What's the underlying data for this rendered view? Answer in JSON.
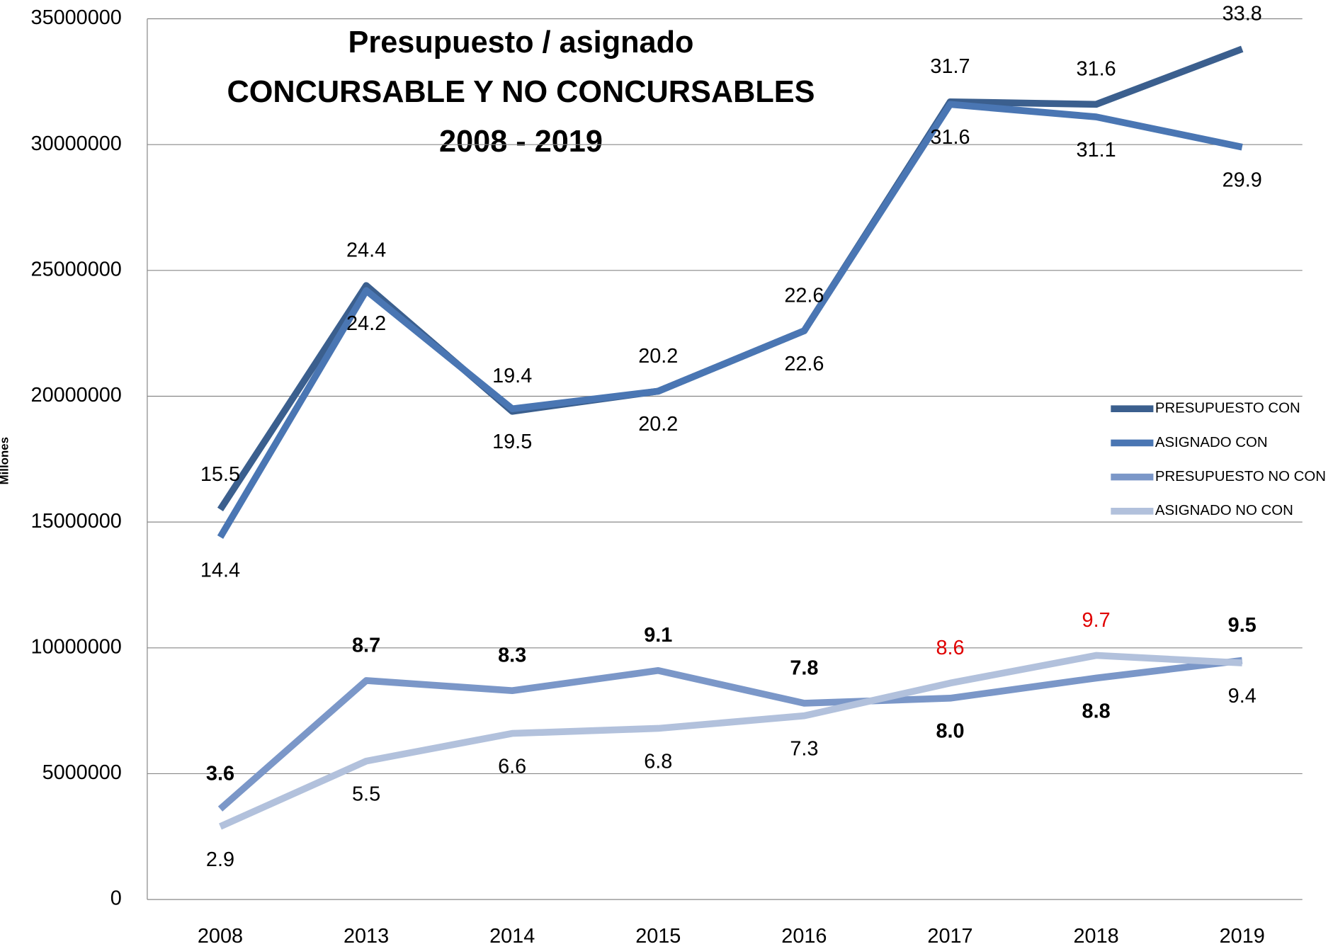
{
  "chart_data": {
    "type": "line",
    "title": [
      "Presupuesto / asignado",
      "CONCURSABLE Y NO CONCURSABLES",
      "2008 - 2019"
    ],
    "ylabel": "Millones",
    "categories": [
      "2008",
      "2013",
      "2014",
      "2015",
      "2016",
      "2017",
      "2018",
      "2019"
    ],
    "series": [
      {
        "name": "PRESUPUESTO CON",
        "color": "#3b5f8e",
        "values": [
          15500000,
          24400000,
          19400000,
          20200000,
          22600000,
          31700000,
          31600000,
          33800000
        ],
        "value_labels": [
          "15.5",
          "24.4",
          "19.4",
          "20.2",
          "22.6",
          "31.7",
          "31.6",
          "33.8"
        ]
      },
      {
        "name": "ASIGNADO CON",
        "color": "#4a76b3",
        "values": [
          14400000,
          24200000,
          19500000,
          20200000,
          22600000,
          31600000,
          31100000,
          29900000
        ],
        "value_labels": [
          "14.4",
          "24.2",
          "19.5",
          "20.2",
          "22.6",
          "31.6",
          "31.1",
          "29.9"
        ]
      },
      {
        "name": "PRESUPUESTO NO CON",
        "color": "#7b97c8",
        "values": [
          3600000,
          8700000,
          8300000,
          9100000,
          7800000,
          8000000,
          8800000,
          9500000
        ],
        "value_labels": [
          "3.6",
          "8.7",
          "8.3",
          "9.1",
          "7.8",
          "8.0",
          "8.8",
          "9.5"
        ]
      },
      {
        "name": "ASIGNADO NO CON",
        "color": "#b2c1dc",
        "values": [
          2900000,
          5500000,
          6600000,
          6800000,
          7300000,
          8600000,
          9700000,
          9400000
        ],
        "value_labels": [
          "2.9",
          "5.5",
          "6.6",
          "6.8",
          "7.3",
          "8.6",
          "9.7",
          "9.4"
        ]
      }
    ],
    "ylim": [
      0,
      35000000
    ],
    "yticks": [
      0,
      5000000,
      10000000,
      15000000,
      20000000,
      25000000,
      30000000,
      35000000
    ],
    "grid": true,
    "legend": "right"
  }
}
